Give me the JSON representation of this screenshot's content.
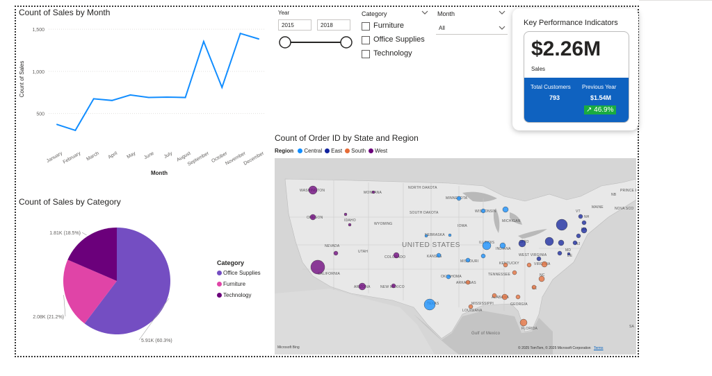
{
  "line_chart": {
    "title": "Count of Sales by Month",
    "ylabel": "Count of Sales",
    "xlabel": "Month",
    "chart_data": {
      "type": "line",
      "categories": [
        "January",
        "February",
        "March",
        "April",
        "May",
        "June",
        "July",
        "August",
        "September",
        "October",
        "November",
        "December"
      ],
      "values": [
        370,
        300,
        675,
        655,
        720,
        690,
        695,
        690,
        1355,
        810,
        1450,
        1385
      ],
      "ylim": [
        250,
        1600
      ],
      "yticks": [
        "500",
        "1,000",
        "1,500"
      ],
      "ytick_values": [
        500,
        1000,
        1500
      ],
      "color": "#118dff"
    }
  },
  "slicers": {
    "year": {
      "label": "Year",
      "start": "2015",
      "end": "2018"
    },
    "category": {
      "label": "Category",
      "options": [
        "Furniture",
        "Office Supplies",
        "Technology"
      ]
    },
    "month": {
      "label": "Month",
      "value": "All"
    }
  },
  "kpi": {
    "title": "Key Performance Indicators",
    "sales_value": "$2.26M",
    "sales_label": "Sales",
    "customers_label": "Total Customers",
    "customers_value": "793",
    "prev_label": "Previous Year",
    "prev_value": "$1.54M",
    "growth": "↗ 46.9%"
  },
  "pie_chart": {
    "title": "Count of Sales by Category",
    "legend_title": "Category",
    "chart_data": {
      "type": "pie",
      "slices": [
        {
          "name": "Office Supplies",
          "value_label": "5.91K (60.3%)",
          "percent": 60.3,
          "color": "#744ec2"
        },
        {
          "name": "Furniture",
          "value_label": "2.08K (21.2%)",
          "percent": 21.2,
          "color": "#e044a7"
        },
        {
          "name": "Technology",
          "value_label": "1.81K (18.5%)",
          "percent": 18.5,
          "color": "#6b007b"
        }
      ]
    }
  },
  "map": {
    "title": "Count of Order ID by State and Region",
    "legend_label": "Region",
    "regions": [
      {
        "name": "Central",
        "color": "#118dff"
      },
      {
        "name": "East",
        "color": "#12239e"
      },
      {
        "name": "South",
        "color": "#e66c37"
      },
      {
        "name": "West",
        "color": "#6b007b"
      }
    ],
    "country_label": "UNITED STATES",
    "state_labels": [
      "WASHINGTON",
      "MONTANA",
      "NORTH DAKOTA",
      "MINNESOTA",
      "OREGON",
      "IDAHO",
      "SOUTH DAKOTA",
      "WISCONSIN",
      "MICHIGAN",
      "WYOMING",
      "NEBRASKA",
      "IOWA",
      "NEVADA",
      "UTAH",
      "COLORADO",
      "KANSAS",
      "ILLINOIS",
      "INDIANA",
      "OHIO",
      "CALIFORNIA",
      "MISSOURI",
      "KENTUCKY",
      "VIRGINIA",
      "WEST VIRGINIA",
      "OKLAHOMA",
      "TENNESSEE",
      "ARIZONA",
      "NEW MEXICO",
      "ARKANSAS",
      "SC",
      "NC",
      "TEXAS",
      "MISSISSIPPI",
      "ALABAMA",
      "GEORGIA",
      "LOUISIANA",
      "FLORIDA",
      "NB",
      "PRINCE EDWARD ISLAND",
      "MAINE",
      "NOVA SCO",
      "VT",
      "NH",
      "MA",
      "DE",
      "MD",
      "NJ",
      "SA"
    ],
    "gulf_label": "Gulf of Mexico",
    "attribution": "© 2025 TomTom, © 2025 Microsoft Corporation",
    "terms": "Terms",
    "bing": "Microsoft Bing"
  }
}
